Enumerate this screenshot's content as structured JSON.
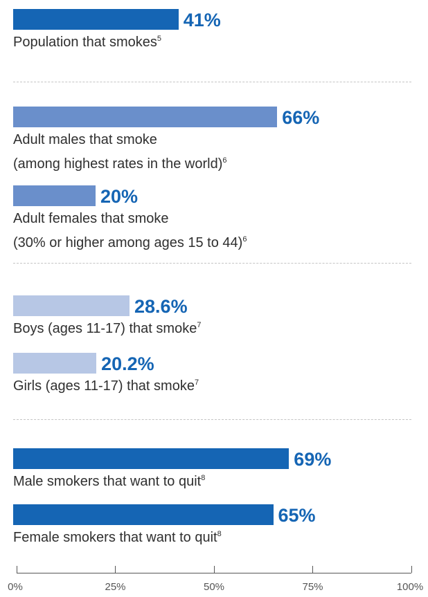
{
  "chart_data": {
    "type": "bar",
    "orientation": "horizontal",
    "xlim": [
      0,
      100
    ],
    "ticks": [
      "0%",
      "25%",
      "50%",
      "75%",
      "100%"
    ],
    "grid": false,
    "colors": {
      "dark": "#1565b4",
      "medium": "#6a8fcb",
      "light": "#b7c7e5",
      "value_text": "#1565b4"
    },
    "groups": [
      {
        "bars": [
          {
            "value": 41,
            "value_label": "41%",
            "label_lines": [
              "Population that smokes"
            ],
            "footnote": "5",
            "color": "dark"
          }
        ]
      },
      {
        "bars": [
          {
            "value": 66,
            "value_label": "66%",
            "label_lines": [
              "Adult males that smoke",
              "(among highest rates in the world)"
            ],
            "footnote": "6",
            "color": "medium"
          },
          {
            "value": 20,
            "value_label": "20%",
            "label_lines": [
              "Adult females that smoke",
              "(30% or higher among ages 15 to 44)"
            ],
            "footnote": "6",
            "color": "medium"
          }
        ]
      },
      {
        "bars": [
          {
            "value": 28.6,
            "value_label": "28.6%",
            "label_lines": [
              "Boys (ages 11-17) that smoke"
            ],
            "footnote": "7",
            "color": "light"
          },
          {
            "value": 20.2,
            "value_label": "20.2%",
            "label_lines": [
              "Girls (ages 11-17) that smoke"
            ],
            "footnote": "7",
            "color": "light"
          }
        ]
      },
      {
        "bars": [
          {
            "value": 69,
            "value_label": "69%",
            "label_lines": [
              "Male smokers that want to quit"
            ],
            "footnote": "8",
            "color": "dark"
          },
          {
            "value": 65,
            "value_label": "65%",
            "label_lines": [
              "Female smokers that want to quit"
            ],
            "footnote": "8",
            "color": "dark"
          }
        ]
      }
    ]
  }
}
